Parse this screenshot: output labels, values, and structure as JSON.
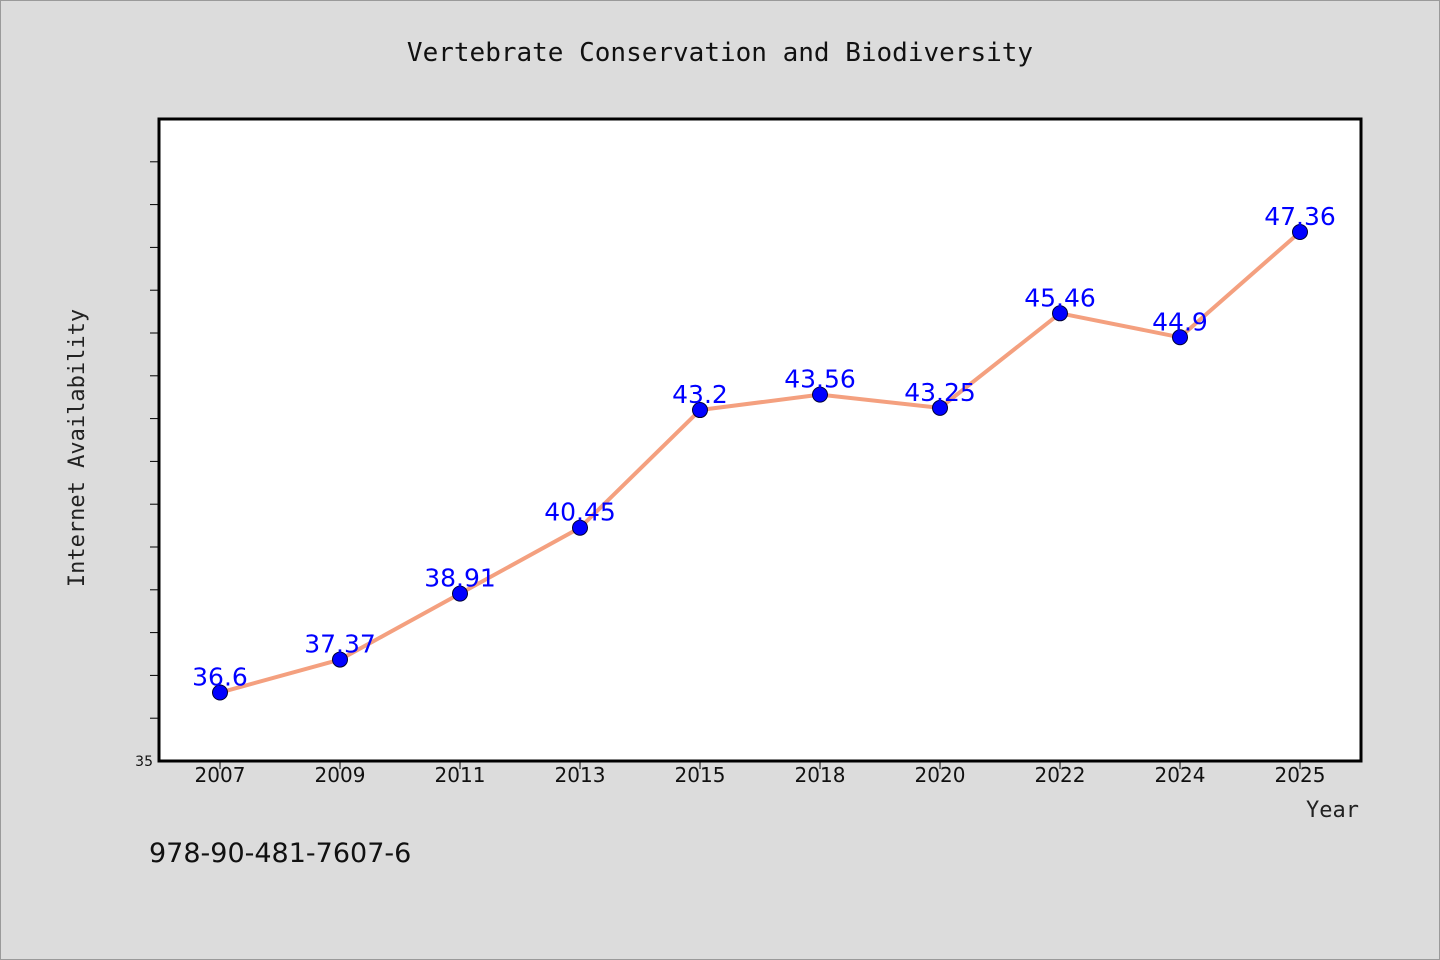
{
  "chart_data": {
    "type": "line",
    "title": "Vertebrate Conservation and Biodiversity",
    "xlabel": "Year",
    "ylabel": "Internet Availability",
    "categories": [
      "2007",
      "2009",
      "2011",
      "2013",
      "2015",
      "2018",
      "2020",
      "2022",
      "2024",
      "2025"
    ],
    "series": [
      {
        "values": [
          36.6,
          37.37,
          38.91,
          40.45,
          43.2,
          43.56,
          43.25,
          45.46,
          44.9,
          47.36
        ],
        "data_labels": [
          "36.6",
          "37.37",
          "38.91",
          "40.45",
          "43.2",
          "43.56",
          "43.25",
          "45.46",
          "44.9",
          "47.36"
        ],
        "line_color": "#f4a07f",
        "marker_color": "#0000ff"
      }
    ],
    "ylim": [
      35,
      50
    ],
    "y_tick_step": 1,
    "y_tick_labels": [
      "35"
    ],
    "grid": false,
    "legend": "none"
  },
  "footnote": "978-90-481-7607-6",
  "colors": {
    "background": "#dcdcdc",
    "plot_background": "#ffffff",
    "line": "#f4a07f",
    "marker": "#0000ff",
    "data_label": "#0000ff"
  }
}
